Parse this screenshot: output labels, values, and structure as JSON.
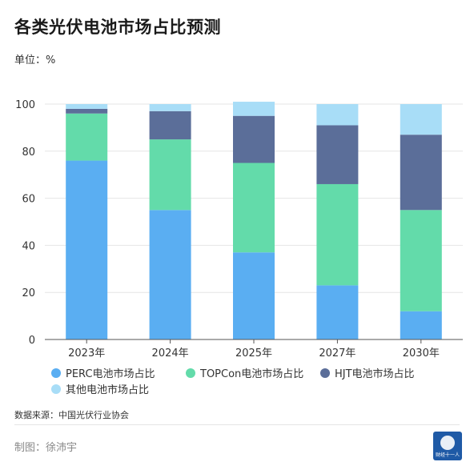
{
  "title": "各类光伏电池市场占比预测",
  "unit_label": "单位：%",
  "source": "数据来源：中国光伏行业协会",
  "credit": "制图：徐沛宇",
  "logo_text": "财经十一人",
  "colors": {
    "perc": "#5aaef2",
    "topcon": "#63dbaa",
    "hjt": "#5b6e99",
    "other": "#a8ddf7",
    "grid": "#e6e6e6",
    "axis": "#555555"
  },
  "chart_data": {
    "type": "bar",
    "stacked": true,
    "categories": [
      "2023年",
      "2024年",
      "2025年",
      "2027年",
      "2030年"
    ],
    "series": [
      {
        "name": "PERC电池市场占比",
        "color_key": "perc",
        "values": [
          76,
          55,
          37,
          23,
          12
        ]
      },
      {
        "name": "TOPCon电池市场占比",
        "color_key": "topcon",
        "values": [
          20,
          30,
          38,
          43,
          43
        ]
      },
      {
        "name": "HJT电池市场占比",
        "color_key": "hjt",
        "values": [
          2,
          12,
          20,
          25,
          32
        ]
      },
      {
        "name": "其他电池市场占比",
        "color_key": "other",
        "values": [
          2,
          3,
          6,
          9,
          13
        ]
      }
    ],
    "ylim": [
      0,
      100
    ],
    "yticks": [
      0,
      20,
      40,
      60,
      80,
      100
    ],
    "grid": true,
    "legend_position": "bottom"
  }
}
